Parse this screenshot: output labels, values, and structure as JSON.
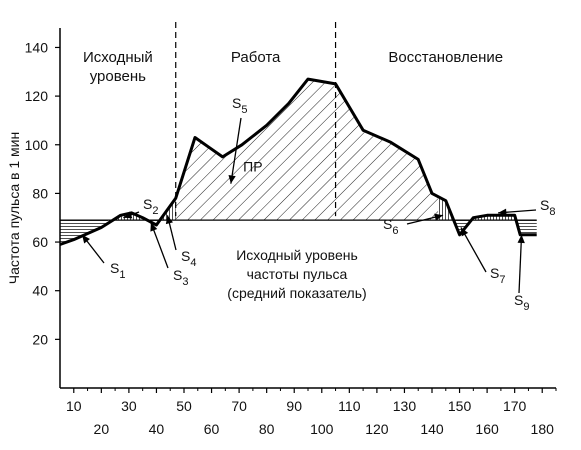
{
  "chart_data": {
    "type": "line",
    "title": "",
    "xlabel": "",
    "ylabel": "Частота пульса в 1 мин",
    "xlim": [
      5,
      185
    ],
    "ylim": [
      0,
      148
    ],
    "x_ticks_upper": [
      10,
      30,
      50,
      70,
      90,
      110,
      130,
      150,
      170
    ],
    "x_ticks_lower": [
      20,
      40,
      60,
      80,
      100,
      120,
      140,
      160,
      180
    ],
    "y_ticks": [
      20,
      40,
      60,
      80,
      100,
      120,
      140
    ],
    "baseline": 69,
    "phases": [
      {
        "name": "Исходный уровень",
        "label_lines": [
          "Исходный",
          "уровень"
        ],
        "from": 5,
        "to": 47
      },
      {
        "name": "Работа",
        "label_lines": [
          "Работа"
        ],
        "from": 47,
        "to": 105
      },
      {
        "name": "Восстановление",
        "label_lines": [
          "Восстановление"
        ],
        "from": 105,
        "to": 185
      }
    ],
    "phase_boundaries": [
      47,
      105
    ],
    "series": [
      {
        "x": [
          5,
          10,
          20,
          27,
          31,
          35,
          40,
          47,
          54,
          59,
          64,
          71,
          80,
          88,
          95,
          105,
          115,
          125,
          135,
          140,
          145,
          150,
          155,
          160,
          165,
          170,
          172,
          178
        ],
        "y": [
          59,
          61,
          66,
          71,
          72,
          70,
          67,
          78,
          103,
          99,
          95,
          100,
          108,
          117,
          127,
          125,
          106,
          101,
          94,
          80,
          77,
          63,
          70,
          71,
          71,
          71,
          63,
          63
        ]
      }
    ],
    "annotations": {
      "baseline_label_lines": [
        "Исходный уровень",
        "частоты пульса",
        "(средний показатель)"
      ],
      "pr_label": "ПР",
      "areas": [
        {
          "letter": "S",
          "sub": "1"
        },
        {
          "letter": "S",
          "sub": "2"
        },
        {
          "letter": "S",
          "sub": "3"
        },
        {
          "letter": "S",
          "sub": "4"
        },
        {
          "letter": "S",
          "sub": "5"
        },
        {
          "letter": "S",
          "sub": "6"
        },
        {
          "letter": "S",
          "sub": "7"
        },
        {
          "letter": "S",
          "sub": "8"
        },
        {
          "letter": "S",
          "sub": "9"
        }
      ]
    },
    "grid": false,
    "legend": "none"
  }
}
